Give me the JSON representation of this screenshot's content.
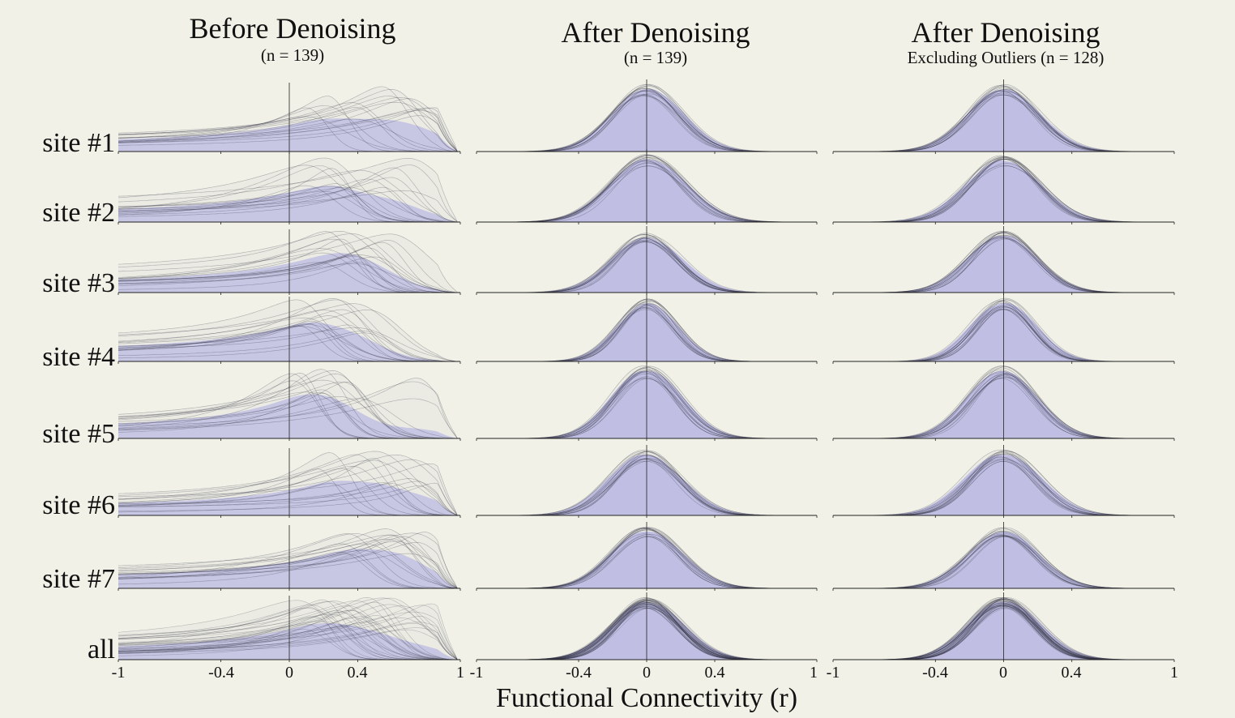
{
  "chart_data": {
    "type": "area",
    "description_kind": "kernel density curves",
    "xlabel": "Functional Connectivity (r)",
    "xlim": [
      -1,
      1
    ],
    "x_ticks": [
      -1,
      -0.4,
      0,
      0.4,
      1
    ],
    "x_tick_labels": [
      "-1",
      "-0.4",
      "0",
      "0.4",
      "1"
    ],
    "rows": [
      "site #1",
      "site #2",
      "site #3",
      "site #4",
      "site #5",
      "site #6",
      "site #7",
      "all"
    ],
    "panels": [
      {
        "title": "Before Denoising",
        "subtitle": "(n = 139)",
        "site_mean_r": [
          0.3,
          0.28,
          0.28,
          0.22,
          0.22,
          0.38,
          0.4,
          0.3
        ],
        "site_sd_r": [
          0.33,
          0.3,
          0.25,
          0.28,
          0.24,
          0.27,
          0.28,
          0.32
        ],
        "example_curve_peaks_r": [
          [
            0.82,
            0.72,
            0.55,
            0.35,
            0.2,
            0.05,
            0.6
          ],
          [
            0.65,
            0.45,
            0.3,
            0.15,
            0.55,
            0.25
          ],
          [
            0.25,
            0.35,
            0.45,
            0.15,
            0.55
          ],
          [
            0.05,
            0.15,
            0.25,
            0.45,
            0.35
          ],
          [
            0.05,
            0.15,
            0.25,
            0.7,
            0.35
          ],
          [
            0.2,
            0.35,
            0.6,
            0.72,
            0.8,
            0.45
          ],
          [
            0.4,
            0.55,
            0.65,
            0.75,
            0.3
          ],
          [
            0.1,
            0.25,
            0.4,
            0.55,
            0.7,
            0.8,
            0.18,
            0.33
          ]
        ]
      },
      {
        "title": "After Denoising",
        "subtitle": "(n = 139)",
        "site_mean_r": [
          0.0,
          0.0,
          0.0,
          0.0,
          0.0,
          0.0,
          0.0,
          0.0
        ],
        "site_sd_r": [
          0.2,
          0.21,
          0.19,
          0.17,
          0.19,
          0.2,
          0.2,
          0.19
        ]
      },
      {
        "title": "After Denoising",
        "subtitle": "Excluding Outliers (n = 128)",
        "site_mean_r": [
          0.0,
          0.0,
          0.0,
          0.0,
          0.0,
          0.0,
          0.0,
          0.0
        ],
        "site_sd_r": [
          0.2,
          0.21,
          0.19,
          0.17,
          0.19,
          0.2,
          0.2,
          0.19
        ]
      }
    ],
    "colors": {
      "background": "#f1f1e7",
      "fill": "#a9a8e4",
      "curve": "#333344",
      "axis": "#222222"
    }
  }
}
